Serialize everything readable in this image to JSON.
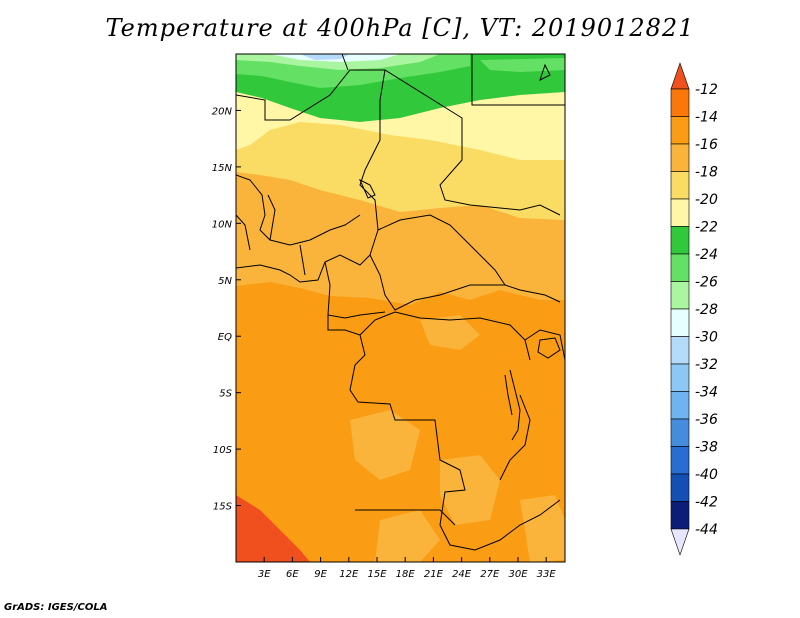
{
  "title": "Temperature at 400hPa [C], VT: 2019012821",
  "credit": "GrADS: IGES/COLA",
  "map": {
    "lon_range": [
      0,
      35
    ],
    "lat_range": [
      -20,
      25
    ],
    "lat_ticks": [
      {
        "value": 20,
        "label": "20N"
      },
      {
        "value": 15,
        "label": "15N"
      },
      {
        "value": 10,
        "label": "10N"
      },
      {
        "value": 5,
        "label": "5N"
      },
      {
        "value": 0,
        "label": "EQ"
      },
      {
        "value": -5,
        "label": "5S"
      },
      {
        "value": -10,
        "label": "10S"
      },
      {
        "value": -15,
        "label": "15S"
      }
    ],
    "lon_ticks": [
      {
        "value": 3,
        "label": "3E"
      },
      {
        "value": 6,
        "label": "6E"
      },
      {
        "value": 9,
        "label": "9E"
      },
      {
        "value": 12,
        "label": "12E"
      },
      {
        "value": 15,
        "label": "15E"
      },
      {
        "value": 18,
        "label": "18E"
      },
      {
        "value": 21,
        "label": "21E"
      },
      {
        "value": 24,
        "label": "24E"
      },
      {
        "value": 27,
        "label": "27E"
      },
      {
        "value": 30,
        "label": "30E"
      },
      {
        "value": 33,
        "label": "33E"
      }
    ]
  },
  "colorbar": {
    "labels": [
      "-12",
      "-14",
      "-16",
      "-18",
      "-20",
      "-22",
      "-24",
      "-26",
      "-28",
      "-30",
      "-32",
      "-34",
      "-36",
      "-38",
      "-40",
      "-42",
      "-44"
    ],
    "colors": [
      "#f0501e",
      "#fa780a",
      "#fa9c14",
      "#fab43c",
      "#fadc64",
      "#fff6a6",
      "#32c83c",
      "#64e164",
      "#aaf5a0",
      "#e6ffff",
      "#b4dcfa",
      "#8cc8f5",
      "#6eb4f0",
      "#468cdc",
      "#286ed2",
      "#1450b4",
      "#0a1e78",
      "#e6e6ff"
    ]
  }
}
